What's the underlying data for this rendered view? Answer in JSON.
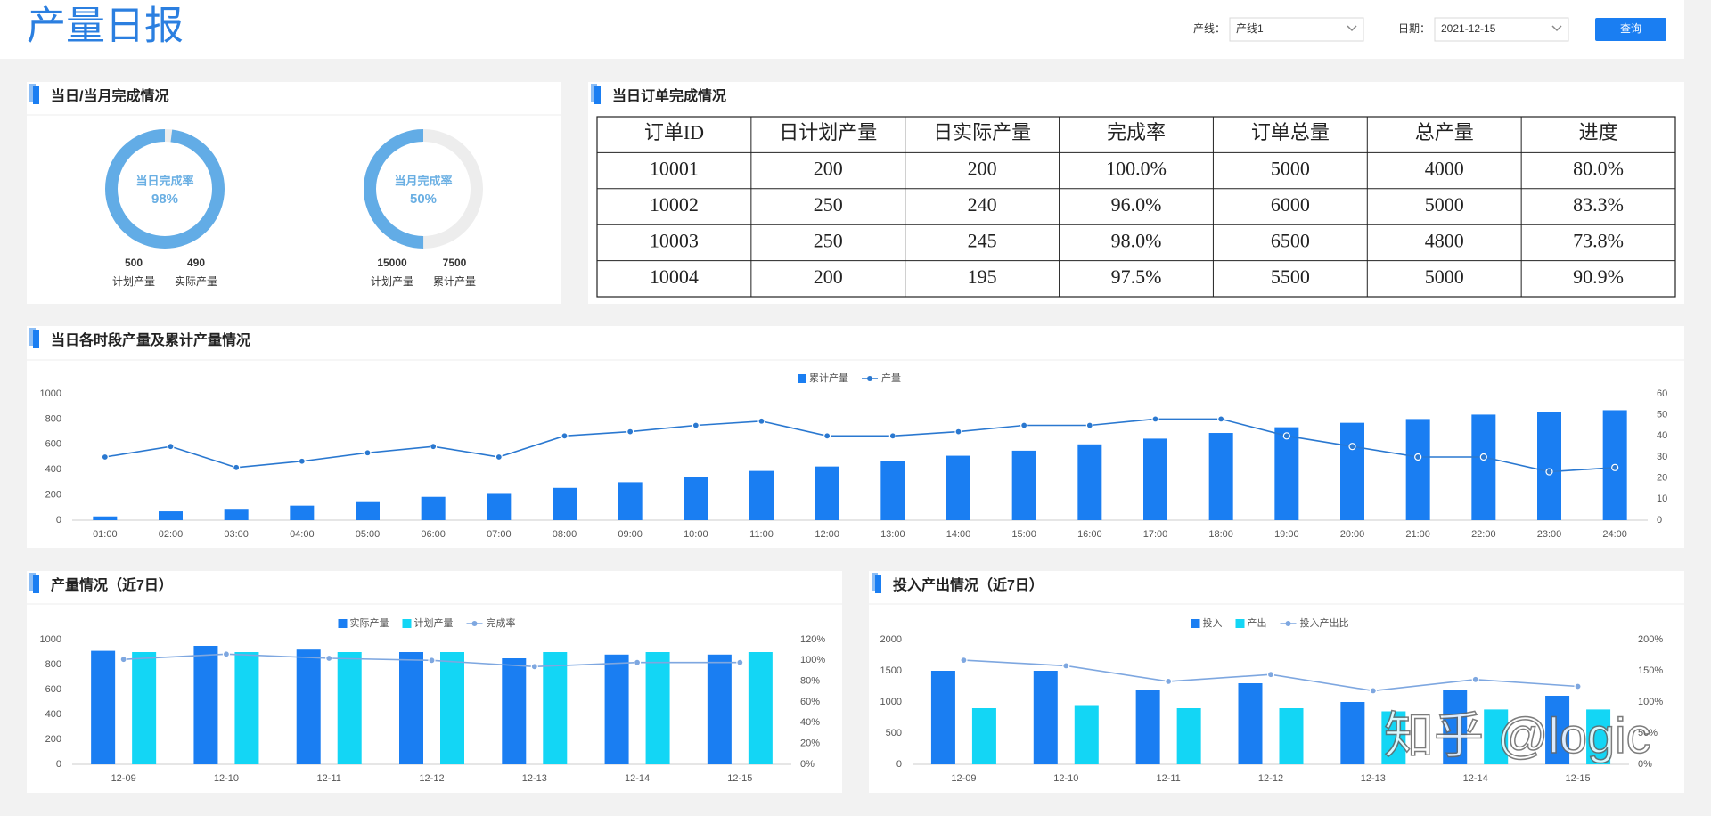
{
  "header": {
    "title": "产量日报",
    "line_label": "产线：",
    "line_value": "产线1",
    "date_label": "日期：",
    "date_value": "2021-12-15",
    "button": "查询"
  },
  "daily_monthly": {
    "title": "当日/当月完成情况",
    "gauges": [
      {
        "label": "当日完成率",
        "rate": 98,
        "rate_label": "98%",
        "stats": [
          {
            "number": 500,
            "name": "计划产量"
          },
          {
            "number": 490,
            "name": "实际产量"
          }
        ]
      },
      {
        "label": "当月完成率",
        "rate": 50,
        "rate_label": "50%",
        "stats": [
          {
            "number": 15000,
            "name": "计划产量"
          },
          {
            "number": 7500,
            "name": "累计产量"
          }
        ]
      }
    ]
  },
  "orders": {
    "title": "当日订单完成情况",
    "columns": [
      "订单ID",
      "日计划产量",
      "日实际产量",
      "完成率",
      "订单总量",
      "总产量",
      "进度"
    ],
    "rows": [
      [
        "10001",
        "200",
        "200",
        "100.0%",
        "5000",
        "4000",
        "80.0%"
      ],
      [
        "10002",
        "250",
        "240",
        "96.0%",
        "6000",
        "5000",
        "83.3%"
      ],
      [
        "10003",
        "250",
        "245",
        "98.0%",
        "6500",
        "4800",
        "73.8%"
      ],
      [
        "10004",
        "200",
        "195",
        "97.5%",
        "5500",
        "5000",
        "90.9%"
      ]
    ]
  },
  "chart_data": [
    {
      "type": "bar",
      "title": "当日各时段产量及累计产量情况",
      "categories": [
        "01:00",
        "02:00",
        "03:00",
        "04:00",
        "05:00",
        "06:00",
        "07:00",
        "08:00",
        "09:00",
        "10:00",
        "11:00",
        "12:00",
        "13:00",
        "14:00",
        "15:00",
        "16:00",
        "17:00",
        "18:00",
        "19:00",
        "20:00",
        "21:00",
        "22:00",
        "23:00",
        "24:00"
      ],
      "series": [
        {
          "name": "累计产量",
          "type": "bar",
          "color": "#1a7ef2",
          "values": [
            30,
            70,
            90,
            115,
            150,
            185,
            215,
            255,
            300,
            340,
            390,
            425,
            465,
            510,
            550,
            600,
            645,
            690,
            735,
            770,
            800,
            835,
            855,
            870
          ]
        },
        {
          "name": "产量",
          "type": "line",
          "axis": "y2",
          "color": "#2a78d0",
          "values": [
            30,
            35,
            25,
            28,
            32,
            35,
            30,
            40,
            42,
            45,
            47,
            40,
            40,
            42,
            45,
            45,
            48,
            48,
            40,
            35,
            30,
            30,
            23,
            25
          ]
        }
      ],
      "ylim": [
        0,
        1000
      ],
      "yticks": [
        0,
        200,
        400,
        600,
        800,
        1000
      ],
      "y2lim": [
        0,
        60
      ],
      "y2ticks": [
        0,
        10,
        20,
        30,
        40,
        50,
        60
      ],
      "grid": false
    },
    {
      "type": "bar",
      "title": "产量情况（近7日）",
      "categories": [
        "12-09",
        "12-10",
        "12-11",
        "12-12",
        "12-13",
        "12-14",
        "12-15"
      ],
      "series": [
        {
          "name": "实际产量",
          "type": "bar",
          "color": "#1a7ef2",
          "values": [
            910,
            950,
            920,
            900,
            850,
            880,
            880
          ]
        },
        {
          "name": "计划产量",
          "type": "bar",
          "color": "#13d6f5",
          "values": [
            900,
            900,
            900,
            900,
            900,
            900,
            900
          ]
        },
        {
          "name": "完成率",
          "type": "line",
          "axis": "y2",
          "color": "#7ea7e0",
          "values": [
            101,
            106,
            102,
            100,
            94,
            98,
            98
          ]
        }
      ],
      "ylim": [
        0,
        1000
      ],
      "yticks": [
        0,
        200,
        400,
        600,
        800,
        1000
      ],
      "y2lim": [
        0,
        120
      ],
      "y2ticks": [
        {
          "value": 0,
          "label": "0%"
        },
        {
          "value": 20,
          "label": "20%"
        },
        {
          "value": 40,
          "label": "40%"
        },
        {
          "value": 60,
          "label": "60%"
        },
        {
          "value": 80,
          "label": "80%"
        },
        {
          "value": 100,
          "label": "100%"
        },
        {
          "value": 120,
          "label": "120%"
        }
      ],
      "grid": false
    },
    {
      "type": "bar",
      "title": "投入产出情况（近7日）",
      "categories": [
        "12-09",
        "12-10",
        "12-11",
        "12-12",
        "12-13",
        "12-14",
        "12-15"
      ],
      "series": [
        {
          "name": "投入",
          "type": "bar",
          "color": "#1a7ef2",
          "values": [
            1500,
            1500,
            1200,
            1300,
            1000,
            1200,
            1100
          ]
        },
        {
          "name": "产出",
          "type": "bar",
          "color": "#13d6f5",
          "values": [
            900,
            950,
            900,
            900,
            850,
            880,
            880
          ]
        },
        {
          "name": "投入产出比",
          "type": "line",
          "axis": "y2",
          "color": "#7ea7e0",
          "values": [
            167,
            158,
            133,
            144,
            118,
            136,
            125
          ]
        }
      ],
      "ylim": [
        0,
        2000
      ],
      "yticks": [
        0,
        500,
        1000,
        1500,
        2000
      ],
      "y2lim": [
        0,
        200
      ],
      "y2ticks": [
        {
          "value": 0,
          "label": "0%"
        },
        {
          "value": 50,
          "label": "50%"
        },
        {
          "value": 100,
          "label": "100%"
        },
        {
          "value": 150,
          "label": "150%"
        },
        {
          "value": 200,
          "label": "200%"
        }
      ],
      "grid": false
    }
  ],
  "watermark": "知乎 @logic"
}
